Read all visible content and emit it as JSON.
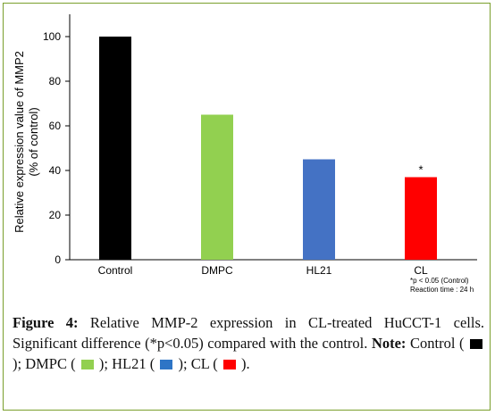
{
  "chart_data": {
    "type": "bar",
    "categories": [
      "Control",
      "DMPC",
      "HL21",
      "CL"
    ],
    "values": [
      100,
      65,
      45,
      37
    ],
    "colors": [
      "#000000",
      "#92d050",
      "#4472c4",
      "#ff0000"
    ],
    "annotations": [
      "",
      "",
      "",
      "*"
    ],
    "xlabel": "",
    "ylabel": "Relative expression value of MMP2",
    "ylabel2": "(% of control)",
    "ylim": [
      0,
      110
    ],
    "yticks": [
      0,
      20,
      40,
      60,
      80,
      100
    ],
    "grid": false,
    "footnote1": "*p < 0.05 (Control)",
    "footnote2": "Reaction time : 24 h"
  },
  "caption": {
    "label": "Figure 4:",
    "text": " Relative MMP-2 expression in CL-treated HuCCT-1 cells. Significant difference (*p<0.05) compared with the control. ",
    "note_label": "Note:",
    "items": [
      {
        "name": "Control",
        "color": "#000000"
      },
      {
        "name": "DMPC",
        "color": "#92d050"
      },
      {
        "name": "HL21",
        "color": "#2e75c6"
      },
      {
        "name": "CL",
        "color": "#ff0000"
      }
    ]
  }
}
